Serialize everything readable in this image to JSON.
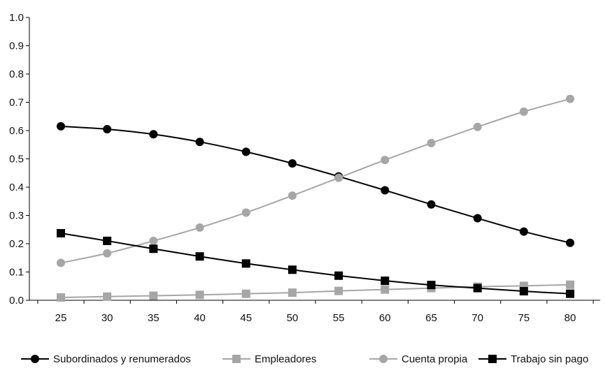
{
  "chart_data": {
    "type": "line",
    "title": "",
    "xlabel": "",
    "ylabel": "",
    "x": [
      25,
      30,
      35,
      40,
      45,
      50,
      55,
      60,
      65,
      70,
      75,
      80
    ],
    "xlim": [
      25,
      80
    ],
    "ylim": [
      0.0,
      1.0
    ],
    "yticks": [
      "0.0",
      "0.1",
      "0.2",
      "0.3",
      "0.4",
      "0.5",
      "0.6",
      "0.7",
      "0.8",
      "0.9",
      "1.0"
    ],
    "xticks": [
      "25",
      "30",
      "35",
      "40",
      "45",
      "50",
      "55",
      "60",
      "65",
      "70",
      "75",
      "80"
    ],
    "grid": false,
    "legend_position": "bottom",
    "series": [
      {
        "name": "Subordinados y renumerados",
        "color": "#000000",
        "marker": "circle",
        "values": [
          0.615,
          0.605,
          0.587,
          0.56,
          0.525,
          0.484,
          0.438,
          0.389,
          0.339,
          0.29,
          0.243,
          0.203
        ]
      },
      {
        "name": "Empleadores",
        "color": "#a6a6a6",
        "marker": "square",
        "values": [
          0.01,
          0.013,
          0.016,
          0.019,
          0.023,
          0.027,
          0.033,
          0.038,
          0.043,
          0.048,
          0.051,
          0.055
        ]
      },
      {
        "name": "Cuenta propia",
        "color": "#a6a6a6",
        "marker": "circle",
        "values": [
          0.132,
          0.166,
          0.21,
          0.257,
          0.31,
          0.37,
          0.433,
          0.496,
          0.556,
          0.613,
          0.667,
          0.712
        ]
      },
      {
        "name": "Trabajo sin pago",
        "color": "#000000",
        "marker": "square",
        "values": [
          0.237,
          0.21,
          0.182,
          0.155,
          0.13,
          0.108,
          0.087,
          0.069,
          0.054,
          0.043,
          0.032,
          0.023
        ]
      }
    ]
  }
}
